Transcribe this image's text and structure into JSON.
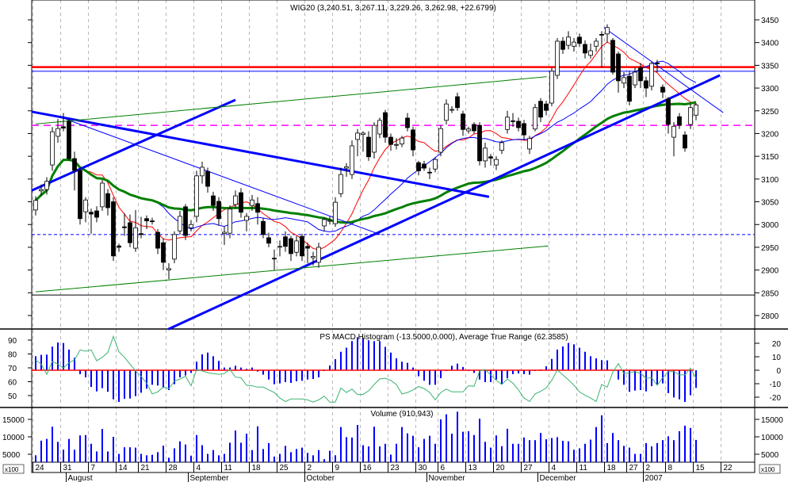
{
  "chart_data": {
    "type": "candlestick",
    "title": "WIG20 (3,240.51, 3,267.11, 3,229.26, 3,262.98, +22.6799)",
    "price_axis": {
      "range": [
        2775,
        3475
      ],
      "ticks": [
        2800,
        2850,
        2900,
        2950,
        3000,
        3050,
        3100,
        3150,
        3200,
        3250,
        3300,
        3350,
        3400,
        3450
      ]
    },
    "candles": [
      [
        3032,
        3062,
        3020,
        3053
      ],
      [
        3074,
        3088,
        3062,
        3077
      ],
      [
        3077,
        3104,
        3066,
        3095
      ],
      [
        3131,
        3214,
        3118,
        3204
      ],
      [
        3194,
        3232,
        3180,
        3211
      ],
      [
        3215,
        3245,
        3205,
        3212
      ],
      [
        3227,
        3232,
        3140,
        3145
      ],
      [
        3145,
        3160,
        3075,
        3119
      ],
      [
        3119,
        3125,
        3000,
        3013
      ],
      [
        3028,
        3060,
        3005,
        3054
      ],
      [
        3027,
        3035,
        2980,
        3023
      ],
      [
        3030,
        3040,
        3005,
        3016
      ],
      [
        3039,
        3098,
        3030,
        3091
      ],
      [
        3068,
        3078,
        3020,
        3037
      ],
      [
        3050,
        3060,
        2920,
        2931
      ],
      [
        2953,
        2958,
        2940,
        2950
      ],
      [
        2995,
        3025,
        2975,
        2993
      ],
      [
        3004,
        3022,
        2950,
        2960
      ],
      [
        2948,
        3032,
        2940,
        2993
      ],
      [
        2980,
        3017,
        2970,
        2978
      ],
      [
        3013,
        3020,
        2990,
        3008
      ],
      [
        3008,
        3015,
        3000,
        3007
      ],
      [
        2983,
        2990,
        2935,
        2948
      ],
      [
        2960,
        2970,
        2900,
        2917
      ],
      [
        2900,
        2915,
        2880,
        2903
      ],
      [
        2924,
        2985,
        2915,
        2978
      ],
      [
        2986,
        3030,
        2978,
        3018
      ],
      [
        3039,
        3045,
        2966,
        2976
      ],
      [
        2993,
        3010,
        2985,
        3000
      ],
      [
        3018,
        3118,
        3005,
        3107
      ],
      [
        3107,
        3138,
        3090,
        3126
      ],
      [
        3117,
        3125,
        3070,
        3084
      ],
      [
        3063,
        3072,
        3030,
        3042
      ],
      [
        3051,
        3060,
        2998,
        3013
      ],
      [
        2980,
        2995,
        2955,
        2983
      ],
      [
        2981,
        3042,
        2970,
        3034
      ],
      [
        3044,
        3075,
        3035,
        3063
      ],
      [
        3070,
        3080,
        3015,
        3027
      ],
      [
        3009,
        3025,
        2985,
        3018
      ],
      [
        3042,
        3065,
        3030,
        3054
      ],
      [
        3046,
        3060,
        3000,
        3027
      ],
      [
        3007,
        3015,
        2970,
        2978
      ],
      [
        2971,
        2982,
        2950,
        2959
      ],
      [
        2926,
        2945,
        2900,
        2925
      ],
      [
        2951,
        2965,
        2930,
        2952
      ],
      [
        2973,
        2985,
        2940,
        2952
      ],
      [
        2969,
        2975,
        2920,
        2936
      ],
      [
        2939,
        2975,
        2930,
        2964
      ],
      [
        2974,
        2980,
        2920,
        2931
      ],
      [
        2952,
        2960,
        2915,
        2948
      ],
      [
        2927,
        2940,
        2910,
        2930
      ],
      [
        2917,
        2960,
        2905,
        2950
      ],
      [
        2997,
        3015,
        2985,
        3011
      ],
      [
        3008,
        3018,
        3000,
        3009
      ],
      [
        3002,
        3060,
        2995,
        3049
      ],
      [
        3068,
        3125,
        3060,
        3110
      ],
      [
        3124,
        3135,
        3105,
        3127
      ],
      [
        3110,
        3185,
        3100,
        3173
      ],
      [
        3187,
        3210,
        3150,
        3201
      ],
      [
        3198,
        3205,
        3160,
        3201
      ],
      [
        3192,
        3205,
        3140,
        3149
      ],
      [
        3159,
        3225,
        3145,
        3218
      ],
      [
        3199,
        3235,
        3190,
        3229
      ],
      [
        3246,
        3252,
        3180,
        3192
      ],
      [
        3192,
        3200,
        3162,
        3176
      ],
      [
        3176,
        3190,
        3165,
        3176
      ],
      [
        3177,
        3195,
        3170,
        3190
      ],
      [
        3234,
        3245,
        3205,
        3213
      ],
      [
        3208,
        3215,
        3150,
        3164
      ],
      [
        3136,
        3140,
        3108,
        3118
      ],
      [
        3133,
        3140,
        3118,
        3124
      ],
      [
        3115,
        3125,
        3100,
        3114
      ],
      [
        3122,
        3148,
        3115,
        3143
      ],
      [
        3159,
        3218,
        3150,
        3211
      ],
      [
        3229,
        3275,
        3220,
        3265
      ],
      [
        3252,
        3260,
        3245,
        3253
      ],
      [
        3281,
        3290,
        3250,
        3257
      ],
      [
        3243,
        3250,
        3195,
        3209
      ],
      [
        3206,
        3215,
        3200,
        3210
      ],
      [
        3220,
        3225,
        3200,
        3206
      ],
      [
        3218,
        3225,
        3130,
        3140
      ],
      [
        3140,
        3180,
        3125,
        3168
      ],
      [
        3149,
        3155,
        3130,
        3146
      ],
      [
        3131,
        3150,
        3120,
        3143
      ],
      [
        3163,
        3185,
        3155,
        3180
      ],
      [
        3209,
        3250,
        3200,
        3236
      ],
      [
        3228,
        3245,
        3215,
        3227
      ],
      [
        3227,
        3235,
        3205,
        3213
      ],
      [
        3222,
        3230,
        3185,
        3197
      ],
      [
        3166,
        3195,
        3155,
        3189
      ],
      [
        3210,
        3265,
        3205,
        3257
      ],
      [
        3271,
        3278,
        3225,
        3236
      ],
      [
        3265,
        3272,
        3240,
        3251
      ],
      [
        3267,
        3345,
        3260,
        3337
      ],
      [
        3328,
        3410,
        3320,
        3403
      ],
      [
        3403,
        3412,
        3375,
        3385
      ],
      [
        3394,
        3425,
        3385,
        3412
      ],
      [
        3392,
        3410,
        3380,
        3401
      ],
      [
        3412,
        3420,
        3390,
        3398
      ],
      [
        3396,
        3405,
        3365,
        3377
      ],
      [
        3372,
        3398,
        3365,
        3382
      ],
      [
        3392,
        3410,
        3380,
        3403
      ],
      [
        3418,
        3425,
        3345,
        3417
      ],
      [
        3419,
        3440,
        3400,
        3433
      ],
      [
        3405,
        3410,
        3330,
        3335
      ],
      [
        3375,
        3380,
        3290,
        3316
      ],
      [
        3311,
        3335,
        3300,
        3323
      ],
      [
        3326,
        3338,
        3262,
        3271
      ],
      [
        3307,
        3345,
        3300,
        3335
      ],
      [
        3345,
        3355,
        3300,
        3316
      ],
      [
        3316,
        3325,
        3280,
        3300
      ],
      [
        3304,
        3358,
        3295,
        3354
      ],
      [
        3355,
        3362,
        3335,
        3354
      ],
      [
        3302,
        3308,
        3278,
        3291
      ],
      [
        3276,
        3280,
        3200,
        3220
      ],
      [
        3192,
        3225,
        3150,
        3216
      ],
      [
        3237,
        3245,
        3210,
        3218
      ],
      [
        3197,
        3205,
        3160,
        3168
      ],
      [
        3220,
        3265,
        3210,
        3257
      ],
      [
        3240.51,
        3267.11,
        3229.26,
        3262.98
      ]
    ],
    "moving_averages": [
      {
        "period": 10,
        "color": "#ff0000"
      },
      {
        "period": 21,
        "color": "#0000ff"
      },
      {
        "period": 50,
        "color": "#008000"
      }
    ],
    "horizontal_lines": [
      {
        "value": 3346,
        "color": "#ff0000",
        "style": "solid-thick"
      },
      {
        "value": 3337,
        "color": "#0000ff",
        "style": "solid"
      },
      {
        "value": 3218,
        "color": "#ff00ff",
        "style": "dashed"
      },
      {
        "value": 2978,
        "color": "#0000ff",
        "style": "dotted"
      },
      {
        "value": 2845,
        "color": "#000000",
        "style": "solid"
      }
    ],
    "trend_lines": [
      {
        "from": [
          -0.7,
          3248
        ],
        "to": [
          81.7,
          3061
        ],
        "color": "#0000ff",
        "style": "thick"
      },
      {
        "from": [
          -0.7,
          3075
        ],
        "to": [
          36,
          3274
        ],
        "color": "#0000ff",
        "style": "thick"
      },
      {
        "from": [
          23.9,
          2770
        ],
        "to": [
          123.3,
          3328
        ],
        "color": "#0000ff",
        "style": "thick"
      },
      {
        "from": [
          5.4,
          3232
        ],
        "to": [
          62.1,
          2978
        ],
        "color": "#0000ff",
        "style": "thin"
      },
      {
        "from": [
          102.4,
          3433
        ],
        "to": [
          123.9,
          3246
        ],
        "color": "#0000ff",
        "style": "thin"
      },
      {
        "from": [
          0,
          3221
        ],
        "to": [
          92.1,
          3325
        ],
        "color": "#008000",
        "style": "thin"
      },
      {
        "from": [
          0,
          2852
        ],
        "to": [
          92.4,
          2953
        ],
        "color": "#008000",
        "style": "thin"
      }
    ],
    "indicator_panel": {
      "title": "PS MACD Histogram (-13.5000,0.000), Average True Range (62.3585)",
      "left_ticks": [
        50,
        60,
        70,
        80,
        90
      ],
      "right_ticks": [
        -20,
        -10,
        0,
        10,
        20
      ],
      "histogram_color": "#0000ff",
      "zero_line_color": "#ff0000",
      "atr_color": "#3cb371",
      "macd_histogram": [
        10.4,
        11.4,
        11.6,
        17.5,
        20.6,
        20.2,
        15.3,
        9.2,
        -2.9,
        -5.3,
        -12.4,
        -15.7,
        -13.3,
        -16,
        -21.6,
        -23.5,
        -21.2,
        -21,
        -19.2,
        -16.7,
        -13.7,
        -10.8,
        -11.4,
        -13.1,
        -14.7,
        -10.4,
        -5.3,
        -3.9,
        -2,
        6.3,
        11.8,
        13.1,
        10.4,
        6.9,
        2,
        2,
        3.3,
        2,
        1,
        2,
        -1,
        -3.3,
        -6.9,
        -10.4,
        -9.8,
        -8.8,
        -9.4,
        -8.2,
        -7.8,
        -6.9,
        -6.5,
        -5.3,
        -0.6,
        3.5,
        8.2,
        13.7,
        16.7,
        21.6,
        24.5,
        24,
        22.2,
        21.6,
        21.6,
        17.3,
        13.1,
        8.8,
        6.3,
        5.5,
        2,
        -4.5,
        -7.8,
        -10.8,
        -10.8,
        -5.9,
        -0.6,
        3.3,
        4.9,
        2.4,
        -0.6,
        -2,
        -6.9,
        -8.8,
        -8.8,
        -6.9,
        -10.4,
        -5.9,
        -2.9,
        -2.4,
        -2.9,
        -3.3,
        -0.6,
        0.6,
        2.9,
        8.4,
        15.3,
        17.6,
        20.2,
        19.2,
        16.7,
        13.7,
        10.4,
        8.8,
        7.5,
        7.3,
        0,
        -6.9,
        -10.8,
        -16,
        -15.1,
        -14.7,
        -15.7,
        -11.8,
        -10.8,
        -9.8,
        -17,
        -20.2,
        -21.6,
        -23.5,
        -18.6,
        -13.1
      ],
      "atr": [
        75.7,
        72.7,
        65.3,
        74.7,
        72.7,
        69.8,
        73.7,
        75.7,
        82.9,
        82,
        82.9,
        75.1,
        77.6,
        81,
        92.7,
        81.6,
        77.6,
        72.7,
        67.8,
        63.9,
        59,
        51.2,
        52.7,
        56.1,
        55.1,
        60.4,
        62,
        63.9,
        57.1,
        68.8,
        67.8,
        66.5,
        65.9,
        65.3,
        65.9,
        68.8,
        63.3,
        62.9,
        57.5,
        57.1,
        56.1,
        56.1,
        54.1,
        52.2,
        48.2,
        45.7,
        47.6,
        47.6,
        47.6,
        46.9,
        45.3,
        46.9,
        49.6,
        45.3,
        45.3,
        55.5,
        52.2,
        54.7,
        50.8,
        50.8,
        53.5,
        58,
        62,
        62.5,
        61,
        58,
        51.2,
        52.2,
        54.1,
        56.5,
        55.1,
        52.2,
        46.9,
        52.2,
        54.7,
        52.7,
        52.7,
        52.7,
        57.1,
        56.7,
        67.8,
        68.8,
        64.9,
        61,
        58,
        62,
        59,
        54.1,
        48.2,
        45.7,
        51.2,
        53.1,
        55.5,
        61,
        68.4,
        64.9,
        61.4,
        57.5,
        52.7,
        50.2,
        48.2,
        45.7,
        58,
        56.1,
        66.9,
        73.1,
        65.9,
        66.5,
        67.3,
        65.9,
        62.5,
        62.9,
        57.5,
        62.9,
        67.3,
        67.3,
        64.9,
        64.9,
        69.8,
        62.36
      ]
    },
    "volume_panel": {
      "title": "Volume (910,943)",
      "unit_label": "x100",
      "ticks": [
        5000,
        10000,
        15000
      ],
      "color": "#0000ff",
      "values": [
        4700,
        8900,
        9400,
        12900,
        8550,
        6300,
        9400,
        6300,
        10400,
        10500,
        8000,
        5800,
        12250,
        5800,
        10000,
        5100,
        7000,
        7000,
        6900,
        5100,
        4700,
        4850,
        5600,
        7450,
        4000,
        6700,
        8700,
        7800,
        4600,
        10500,
        7600,
        5100,
        6200,
        4700,
        5100,
        8300,
        11800,
        8300,
        10900,
        6200,
        13000,
        6500,
        8200,
        4350,
        5100,
        7400,
        5600,
        6500,
        6900,
        5400,
        4700,
        6200,
        3600,
        6000,
        4700,
        12800,
        9900,
        9800,
        13400,
        7600,
        7250,
        12900,
        7250,
        8000,
        4900,
        8000,
        12800,
        11000,
        10300,
        7000,
        9400,
        10300,
        8000,
        15000,
        16450,
        10900,
        17200,
        11450,
        11600,
        10500,
        15200,
        8550,
        6900,
        10400,
        7300,
        12300,
        8000,
        8000,
        9800,
        9050,
        9050,
        11100,
        9300,
        9650,
        9900,
        8850,
        8700,
        6300,
        6700,
        8000,
        9200,
        12800,
        16150,
        8200,
        11100,
        9050,
        7400,
        6900,
        5100,
        5100,
        8200,
        7250,
        8200,
        9050,
        10150,
        9050,
        11600,
        13200,
        12550,
        9109
      ]
    },
    "x_axis": {
      "week_ticks": [
        {
          "label": "24",
          "index": 0
        },
        {
          "label": "31",
          "index": 5
        },
        {
          "label": "7",
          "index": 10
        },
        {
          "label": "14",
          "index": 15
        },
        {
          "label": "21",
          "index": 19
        },
        {
          "label": "28",
          "index": 24
        },
        {
          "label": "4",
          "index": 29
        },
        {
          "label": "11",
          "index": 34
        },
        {
          "label": "18",
          "index": 39
        },
        {
          "label": "25",
          "index": 44
        },
        {
          "label": "2",
          "index": 49
        },
        {
          "label": "9",
          "index": 54
        },
        {
          "label": "16",
          "index": 59
        },
        {
          "label": "23",
          "index": 64
        },
        {
          "label": "30",
          "index": 69
        },
        {
          "label": "6",
          "index": 73
        },
        {
          "label": "13",
          "index": 78
        },
        {
          "label": "20",
          "index": 83
        },
        {
          "label": "27",
          "index": 88
        },
        {
          "label": "4",
          "index": 93
        },
        {
          "label": "11",
          "index": 98
        },
        {
          "label": "18",
          "index": 103
        },
        {
          "label": "27",
          "index": 107
        },
        {
          "label": "2",
          "index": 110
        },
        {
          "label": "8",
          "index": 114
        },
        {
          "label": "15",
          "index": 119
        },
        {
          "label": "22",
          "index": 124
        }
      ],
      "months": [
        {
          "label": "August",
          "index": 6
        },
        {
          "label": "September",
          "index": 28
        },
        {
          "label": "October",
          "index": 49
        },
        {
          "label": "November",
          "index": 71
        },
        {
          "label": "December",
          "index": 91
        },
        {
          "label": "2007",
          "index": 110
        }
      ]
    }
  }
}
